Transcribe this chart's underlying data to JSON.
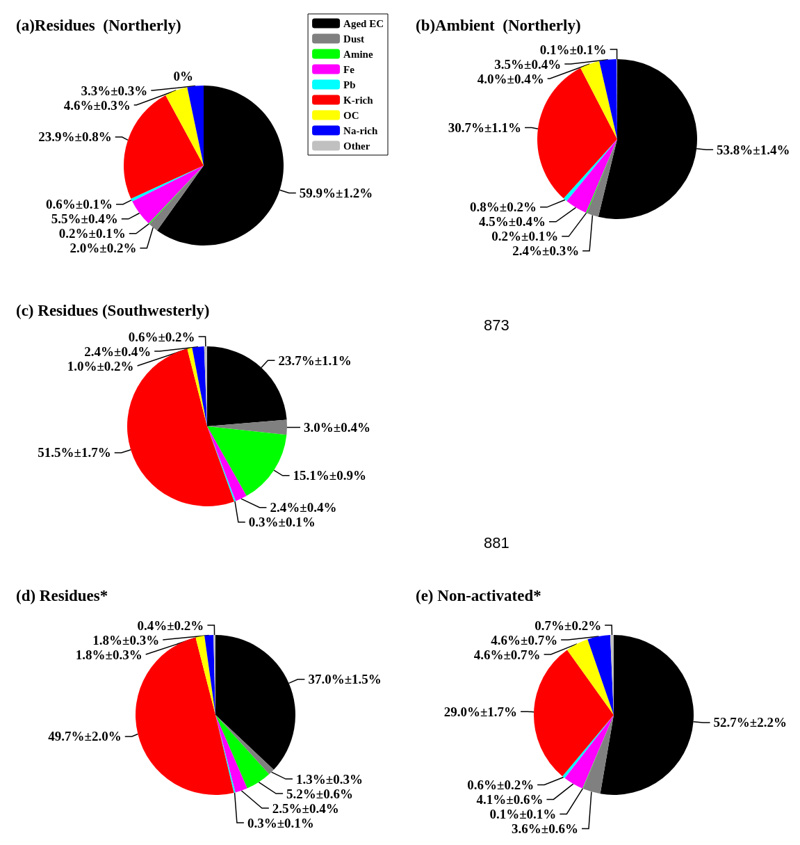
{
  "chart_data": [
    {
      "type": "pie",
      "title": "(a)Residues  (Northerly)",
      "legend": "top right",
      "categories": [
        "Aged EC",
        "Dust",
        "Amine",
        "Fe",
        "Pb",
        "K-rich",
        "OC",
        "Na-rich",
        "Other"
      ],
      "colors": [
        "#000000",
        "#808080",
        "#00ff00",
        "#ff00ff",
        "#00ffff",
        "#ff0000",
        "#ffff00",
        "#0000ff",
        "#c0c0c0"
      ],
      "values": [
        59.9,
        2.0,
        0.2,
        5.5,
        0.6,
        23.9,
        4.6,
        3.3,
        0
      ],
      "value_labels": [
        "59.9%±1.2%",
        "2.0%±0.2%",
        "0.2%±0.1%",
        "5.5%±0.4%",
        "0.6%±0.1%",
        "23.9%±0.8%",
        "4.6%±0.3%",
        "3.3%±0.3%",
        "0%"
      ]
    },
    {
      "type": "pie",
      "title": "(b)Ambient  (Northerly)",
      "categories": [
        null,
        null,
        null,
        null,
        null,
        null,
        null,
        null,
        null
      ],
      "colors": [
        "#000000",
        "#808080",
        "#00ff00",
        "#ff00ff",
        "#00ffff",
        "#ff0000",
        "#ffff00",
        "#0000ff",
        "#c0c0c0"
      ],
      "values": [
        53.8,
        2.4,
        0.2,
        4.5,
        0.8,
        30.7,
        4.0,
        3.5,
        0.1
      ],
      "value_labels": [
        "53.8%±1.4%",
        "2.4%±0.3%",
        "0.2%±0.1%",
        "4.5%±0.4%",
        "0.8%±0.2%",
        "30.7%±1.1%",
        "4.0%±0.4%",
        "3.5%±0.4%",
        "0.1%±0.1%"
      ]
    },
    {
      "type": "pie",
      "title": "(c) Residues (Southwesterly)",
      "annotations": [
        "873",
        "881"
      ],
      "categories": [
        null,
        null,
        null,
        null,
        null,
        null,
        null,
        null,
        null
      ],
      "colors": [
        "#000000",
        "#808080",
        "#00ff00",
        "#ff00ff",
        "#00ffff",
        "#ff0000",
        "#ffff00",
        "#0000ff",
        "#c0c0c0"
      ],
      "values": [
        23.7,
        3.0,
        15.1,
        2.4,
        0.3,
        51.5,
        1.0,
        2.4,
        0.6
      ],
      "value_labels": [
        "23.7%±1.1%",
        "3.0%±0.4%",
        "15.1%±0.9%",
        "2.4%±0.4%",
        "0.3%±0.1%",
        "51.5%±1.7%",
        "1.0%±0.2%",
        "2.4%±0.4%",
        "0.6%±0.2%"
      ]
    },
    {
      "type": "pie",
      "title": "(d) Residues*",
      "categories": [
        null,
        null,
        null,
        null,
        null,
        null,
        null,
        null,
        null
      ],
      "colors": [
        "#000000",
        "#808080",
        "#00ff00",
        "#ff00ff",
        "#00ffff",
        "#ff0000",
        "#ffff00",
        "#0000ff",
        "#c0c0c0"
      ],
      "values": [
        37.0,
        1.3,
        5.2,
        2.5,
        0.3,
        49.7,
        1.8,
        1.8,
        0.4
      ],
      "value_labels": [
        "37.0%±1.5%",
        "1.3%±0.3%",
        "5.2%±0.6%",
        "2.5%±0.4%",
        "0.3%±0.1%",
        "49.7%±2.0%",
        "1.8%±0.3%",
        "1.8%±0.3%",
        "0.4%±0.2%"
      ]
    },
    {
      "type": "pie",
      "title": "(e) Non-activated*",
      "categories": [
        null,
        null,
        null,
        null,
        null,
        null,
        null,
        null,
        null
      ],
      "colors": [
        "#000000",
        "#808080",
        "#00ff00",
        "#ff00ff",
        "#00ffff",
        "#ff0000",
        "#ffff00",
        "#0000ff",
        "#c0c0c0"
      ],
      "values": [
        52.7,
        3.6,
        0.1,
        4.1,
        0.6,
        29.0,
        4.6,
        4.6,
        0.7
      ],
      "value_labels": [
        "52.7%±2.2%",
        "3.6%±0.6%",
        "0.1%±0.1%",
        "4.1%±0.6%",
        "0.6%±0.2%",
        "29.0%±1.7%",
        "4.6%±0.7%",
        "4.6%±0.7%",
        "0.7%±0.2%"
      ]
    }
  ]
}
